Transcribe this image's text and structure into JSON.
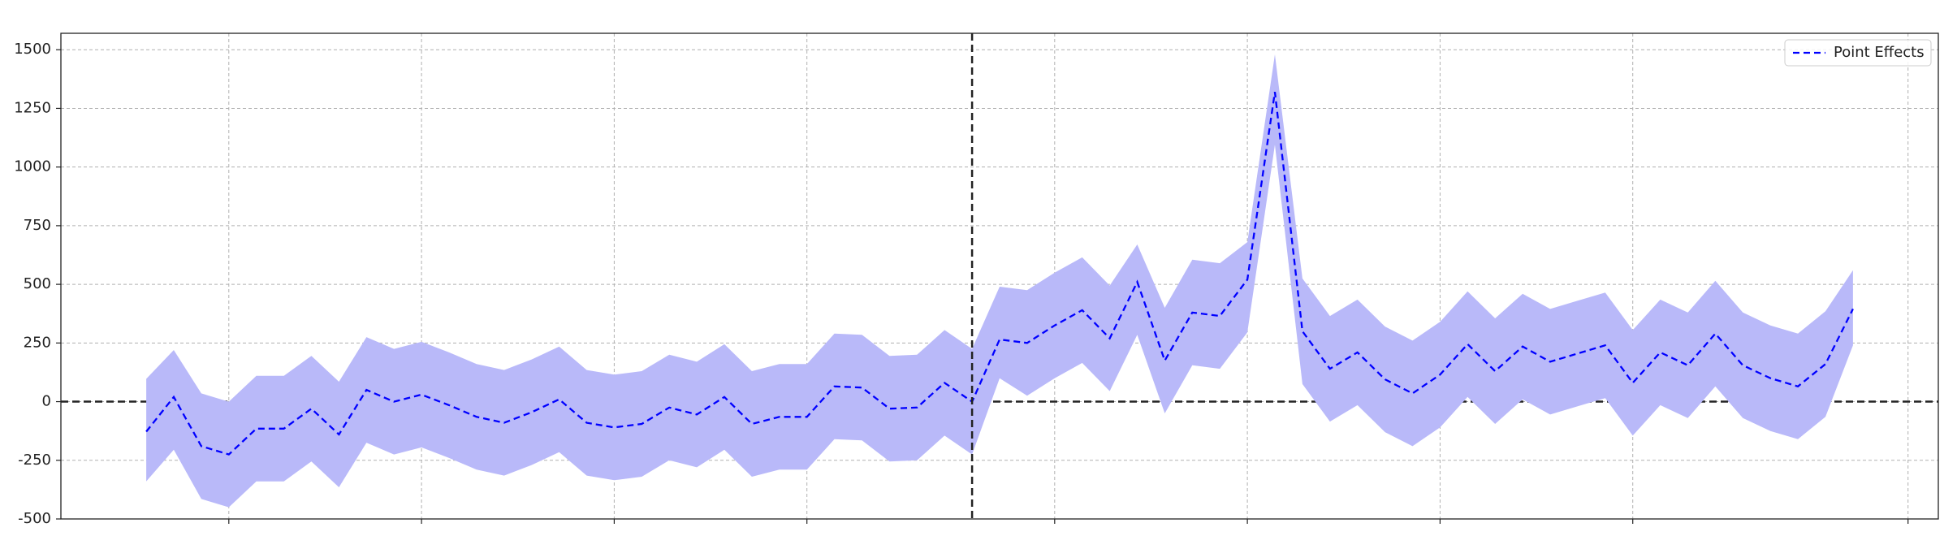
{
  "chart_data": {
    "type": "line",
    "x": [
      0,
      1,
      2,
      3,
      4,
      5,
      6,
      7,
      8,
      9,
      10,
      11,
      12,
      13,
      14,
      15,
      16,
      17,
      18,
      19,
      20,
      21,
      22,
      23,
      24,
      25,
      26,
      27,
      28,
      29,
      30,
      31,
      32,
      33,
      34,
      35,
      36,
      37,
      38,
      39,
      40,
      41,
      42,
      43,
      44,
      45,
      46,
      47,
      48,
      49,
      50,
      51,
      52,
      53,
      54,
      55,
      56,
      57,
      58,
      59,
      60,
      61,
      62
    ],
    "series": [
      {
        "name": "Point Effects",
        "color": "#0000ff",
        "band_color": "#b9b9f9",
        "values": [
          -128,
          20,
          -190,
          -225,
          -115,
          -115,
          -30,
          -140,
          50,
          0,
          30,
          -15,
          -65,
          -90,
          -45,
          10,
          -90,
          -110,
          -95,
          -25,
          -55,
          20,
          -95,
          -65,
          -65,
          65,
          60,
          -30,
          -25,
          80,
          0,
          265,
          250,
          325,
          390,
          270,
          510,
          175,
          380,
          365,
          520,
          1320,
          300,
          140,
          210,
          95,
          35,
          115,
          245,
          130,
          235,
          170,
          205,
          240,
          80,
          210,
          155,
          290,
          155,
          100,
          65,
          160,
          395
        ],
        "upper": [
          97,
          220,
          35,
          0,
          110,
          110,
          195,
          85,
          275,
          225,
          255,
          210,
          160,
          135,
          180,
          235,
          135,
          115,
          130,
          200,
          170,
          245,
          130,
          160,
          160,
          290,
          285,
          195,
          200,
          305,
          225,
          490,
          475,
          550,
          615,
          495,
          670,
          400,
          605,
          590,
          680,
          1480,
          525,
          365,
          435,
          320,
          260,
          340,
          470,
          355,
          460,
          395,
          430,
          465,
          305,
          435,
          380,
          515,
          380,
          325,
          290,
          385,
          560
        ],
        "lower": [
          -340,
          -205,
          -415,
          -450,
          -340,
          -340,
          -255,
          -365,
          -175,
          -225,
          -195,
          -240,
          -290,
          -315,
          -270,
          -215,
          -315,
          -335,
          -320,
          -250,
          -280,
          -205,
          -320,
          -290,
          -290,
          -160,
          -165,
          -255,
          -250,
          -145,
          -225,
          100,
          25,
          100,
          165,
          45,
          285,
          -50,
          155,
          140,
          295,
          1095,
          75,
          -85,
          -15,
          -130,
          -190,
          -110,
          20,
          -95,
          10,
          -55,
          -20,
          15,
          -145,
          -15,
          -70,
          65,
          -70,
          -125,
          -160,
          -65,
          240
        ]
      }
    ],
    "xlim": [
      -3.1,
      65.1
    ],
    "ylim": [
      -500,
      1570
    ],
    "xticks": [
      3,
      10,
      17,
      24,
      33,
      40,
      47,
      54,
      64
    ],
    "yticks": [
      -500,
      -250,
      0,
      250,
      500,
      750,
      1000,
      1250,
      1500
    ],
    "grid": true,
    "legend": "upper right",
    "hline": 0,
    "vline": 30
  }
}
